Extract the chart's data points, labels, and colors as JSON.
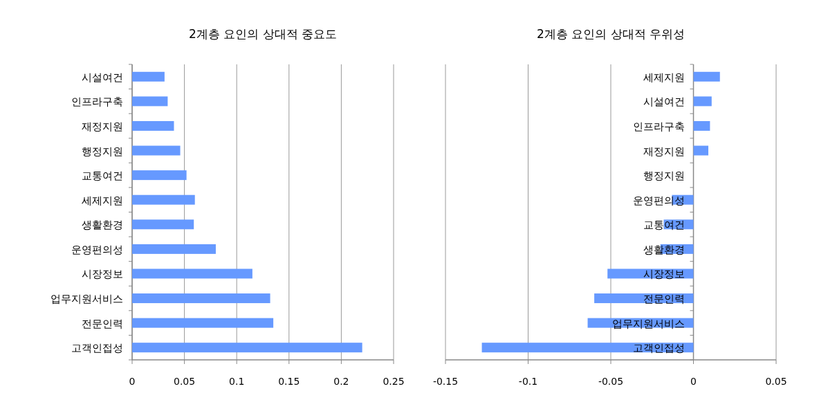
{
  "chart_data": [
    {
      "type": "bar",
      "orientation": "horizontal",
      "title": "2계층 요인의 상대적 중요도",
      "categories": [
        "시설여건",
        "인프라구축",
        "재정지원",
        "행정지원",
        "교통여건",
        "세제지원",
        "생활환경",
        "운영편의성",
        "시장정보",
        "업무지원서비스",
        "전문인력",
        "고객인접성"
      ],
      "values": [
        0.031,
        0.034,
        0.04,
        0.046,
        0.052,
        0.06,
        0.059,
        0.08,
        0.115,
        0.132,
        0.135,
        0.22
      ],
      "color": "#6699ff",
      "xlim": [
        0,
        0.25
      ],
      "xticks": [
        0,
        0.05,
        0.1,
        0.15,
        0.2,
        0.25
      ],
      "grid": "x"
    },
    {
      "type": "bar",
      "orientation": "horizontal",
      "title": "2계층 요인의 상대적 우위성",
      "categories": [
        "세제지원",
        "시설여건",
        "인프라구축",
        "재정지원",
        "행정지원",
        "운영편의성",
        "교통여건",
        "생활환경",
        "시장정보",
        "전문인력",
        "업무지원서비스",
        "고객인접성"
      ],
      "values": [
        0.016,
        0.011,
        0.01,
        0.009,
        0,
        -0.013,
        -0.018,
        -0.02,
        -0.052,
        -0.06,
        -0.064,
        -0.128
      ],
      "color": "#6699ff",
      "xlim": [
        -0.15,
        0.05
      ],
      "xticks": [
        -0.15,
        -0.1,
        -0.05,
        0,
        0.05
      ],
      "grid": "x"
    }
  ]
}
